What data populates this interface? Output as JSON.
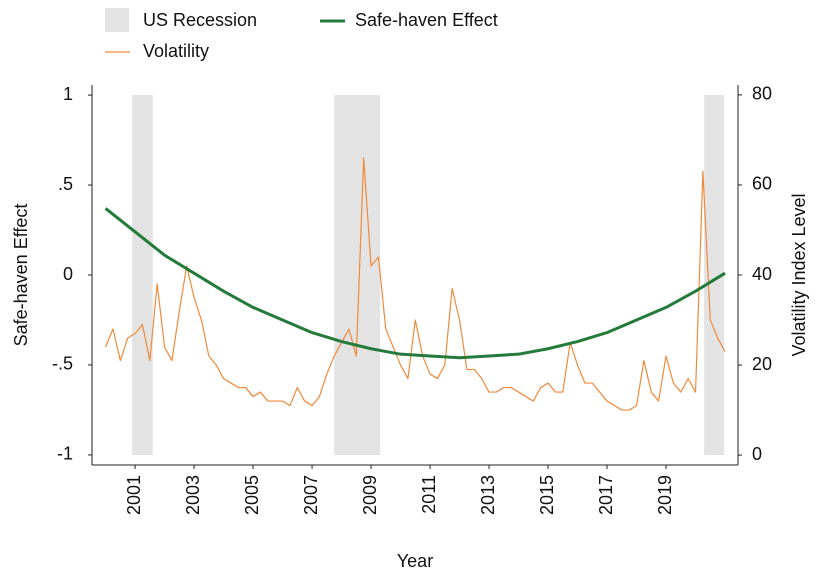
{
  "chart_data": {
    "type": "line",
    "xlabel": "Year",
    "ylabel": "Safe-haven Effect",
    "y2label": "Volatility Index Level",
    "xlim": [
      1999.54,
      2021.44
    ],
    "ylim": [
      -1.056,
      1.056
    ],
    "y2lim": [
      -2.2,
      82.2
    ],
    "xticks": [
      2001,
      2003,
      2005,
      2007,
      2009,
      2011,
      2013,
      2015,
      2017,
      2019
    ],
    "yticks": [
      -1,
      {
        "value": -0.5,
        "label": "-.5"
      },
      0,
      {
        "value": 0.5,
        "label": ".5"
      },
      1
    ],
    "y2ticks": [
      0,
      20,
      40,
      60,
      80
    ],
    "grid": false,
    "recessions": {
      "name": "US Recession",
      "color": "#e3e3e3",
      "band": [
        -1,
        1
      ],
      "spans": [
        [
          2000.9,
          2001.6
        ],
        [
          2007.75,
          2009.31
        ],
        [
          2020.29,
          2020.97
        ]
      ]
    },
    "series": [
      {
        "name": "Safe-haven Effect",
        "color": "#237a3b",
        "axis": "y",
        "x": [
          2000,
          2001,
          2002,
          2003,
          2004,
          2005,
          2006,
          2007,
          2008,
          2009,
          2010,
          2011,
          2012,
          2013,
          2014,
          2015,
          2016,
          2017,
          2018,
          2019,
          2020,
          2021
        ],
        "values": [
          0.37,
          0.24,
          0.11,
          0.01,
          -0.09,
          -0.18,
          -0.25,
          -0.32,
          -0.37,
          -0.41,
          -0.44,
          -0.45,
          -0.46,
          -0.45,
          -0.44,
          -0.41,
          -0.37,
          -0.32,
          -0.25,
          -0.18,
          -0.09,
          0.01
        ]
      },
      {
        "name": "Volatility",
        "color": "#f08a3c",
        "axis": "y2",
        "x": [
          2000,
          2000.25,
          2000.5,
          2000.75,
          2001,
          2001.25,
          2001.5,
          2001.75,
          2002,
          2002.25,
          2002.5,
          2002.75,
          2003,
          2003.25,
          2003.5,
          2003.75,
          2004,
          2004.25,
          2004.5,
          2004.75,
          2005,
          2005.25,
          2005.5,
          2005.75,
          2006,
          2006.25,
          2006.5,
          2006.75,
          2007,
          2007.25,
          2007.5,
          2007.75,
          2008,
          2008.25,
          2008.5,
          2008.75,
          2009,
          2009.25,
          2009.5,
          2009.75,
          2010,
          2010.25,
          2010.5,
          2010.75,
          2011,
          2011.25,
          2011.5,
          2011.75,
          2012,
          2012.25,
          2012.5,
          2012.75,
          2013,
          2013.25,
          2013.5,
          2013.75,
          2014,
          2014.25,
          2014.5,
          2014.75,
          2015,
          2015.25,
          2015.5,
          2015.75,
          2016,
          2016.25,
          2016.5,
          2016.75,
          2017,
          2017.25,
          2017.5,
          2017.75,
          2018,
          2018.25,
          2018.5,
          2018.75,
          2019,
          2019.25,
          2019.5,
          2019.75,
          2020,
          2020.25,
          2020.5,
          2020.75,
          2021
        ],
        "values": [
          24,
          28,
          21,
          26,
          27,
          29,
          21,
          38,
          24,
          21,
          32,
          42,
          35,
          30,
          22,
          20,
          17,
          16,
          15,
          15,
          13,
          14,
          12,
          12,
          12,
          11,
          15,
          12,
          11,
          13,
          18,
          22,
          25,
          28,
          22,
          66,
          42,
          44,
          28,
          24,
          20,
          17,
          30,
          22,
          18,
          17,
          20,
          37,
          30,
          19,
          19,
          17,
          14,
          14,
          15,
          15,
          14,
          13,
          12,
          15,
          16,
          14,
          14,
          25,
          20,
          16,
          16,
          14,
          12,
          11,
          10,
          10,
          11,
          21,
          14,
          12,
          22,
          16,
          14,
          17,
          14,
          63,
          30,
          26,
          23
        ]
      }
    ]
  }
}
